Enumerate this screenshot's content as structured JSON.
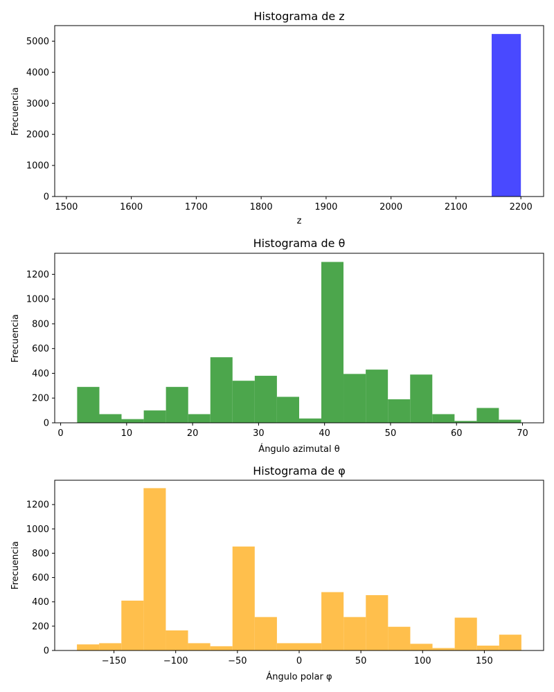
{
  "chart_data": [
    {
      "type": "bar",
      "title": "Histograma de z",
      "xlabel": "z",
      "ylabel": "Frecuencia",
      "xlim": [
        1482,
        2235
      ],
      "ylim": [
        0,
        5500
      ],
      "xticks": [
        1500,
        1600,
        1700,
        1800,
        1900,
        2000,
        2100,
        2200
      ],
      "yticks": [
        0,
        1000,
        2000,
        3000,
        4000,
        5000
      ],
      "color": "#4949ff",
      "bins": [
        {
          "x0": 2155,
          "x1": 2200,
          "value": 5230
        }
      ]
    },
    {
      "type": "bar",
      "title": "Histograma de θ",
      "xlabel": "Ángulo azimutal θ",
      "ylabel": "Frecuencia",
      "xlim": [
        -0.9,
        73.2
      ],
      "ylim": [
        0,
        1370
      ],
      "xticks": [
        0,
        10,
        20,
        30,
        40,
        50,
        60,
        70
      ],
      "yticks": [
        0,
        200,
        400,
        600,
        800,
        1000,
        1200
      ],
      "color": "#4ca64c",
      "bins": [
        {
          "x0": 2.5,
          "x1": 5.87,
          "value": 290
        },
        {
          "x0": 5.87,
          "x1": 9.23,
          "value": 70
        },
        {
          "x0": 9.23,
          "x1": 12.6,
          "value": 30
        },
        {
          "x0": 12.6,
          "x1": 15.96,
          "value": 100
        },
        {
          "x0": 15.96,
          "x1": 19.33,
          "value": 290
        },
        {
          "x0": 19.33,
          "x1": 22.69,
          "value": 70
        },
        {
          "x0": 22.69,
          "x1": 26.05,
          "value": 530
        },
        {
          "x0": 26.05,
          "x1": 29.42,
          "value": 340
        },
        {
          "x0": 29.42,
          "x1": 32.78,
          "value": 380
        },
        {
          "x0": 32.78,
          "x1": 36.15,
          "value": 210
        },
        {
          "x0": 36.15,
          "x1": 39.51,
          "value": 35
        },
        {
          "x0": 39.51,
          "x1": 42.87,
          "value": 1300
        },
        {
          "x0": 42.87,
          "x1": 46.24,
          "value": 395
        },
        {
          "x0": 46.24,
          "x1": 49.6,
          "value": 430
        },
        {
          "x0": 49.6,
          "x1": 52.97,
          "value": 190
        },
        {
          "x0": 52.97,
          "x1": 56.33,
          "value": 390
        },
        {
          "x0": 56.33,
          "x1": 59.7,
          "value": 70
        },
        {
          "x0": 59.7,
          "x1": 63.06,
          "value": 15
        },
        {
          "x0": 63.06,
          "x1": 66.42,
          "value": 120
        },
        {
          "x0": 66.42,
          "x1": 69.79,
          "value": 25
        }
      ]
    },
    {
      "type": "bar",
      "title": "Histograma de φ",
      "xlabel": "Ángulo polar φ",
      "ylabel": "Frecuencia",
      "xlim": [
        -198,
        198
      ],
      "ylim": [
        0,
        1400
      ],
      "xticks": [
        -150,
        -100,
        -50,
        0,
        50,
        100,
        150
      ],
      "xtick_labels": [
        "−150",
        "−100",
        "−50",
        "0",
        "50",
        "100",
        "150"
      ],
      "yticks": [
        0,
        200,
        400,
        600,
        800,
        1000,
        1200
      ],
      "color": "#ffbf4c",
      "bins": [
        {
          "x0": -180,
          "x1": -162,
          "value": 50
        },
        {
          "x0": -162,
          "x1": -144,
          "value": 60
        },
        {
          "x0": -144,
          "x1": -126,
          "value": 410
        },
        {
          "x0": -126,
          "x1": -108,
          "value": 1335
        },
        {
          "x0": -108,
          "x1": -90,
          "value": 165
        },
        {
          "x0": -90,
          "x1": -72,
          "value": 60
        },
        {
          "x0": -72,
          "x1": -54,
          "value": 35
        },
        {
          "x0": -54,
          "x1": -36,
          "value": 855
        },
        {
          "x0": -36,
          "x1": -18,
          "value": 275
        },
        {
          "x0": -18,
          "x1": 0,
          "value": 60
        },
        {
          "x0": 0,
          "x1": 18,
          "value": 60
        },
        {
          "x0": 18,
          "x1": 36,
          "value": 480
        },
        {
          "x0": 36,
          "x1": 54,
          "value": 275
        },
        {
          "x0": 54,
          "x1": 72,
          "value": 455
        },
        {
          "x0": 72,
          "x1": 90,
          "value": 195
        },
        {
          "x0": 90,
          "x1": 108,
          "value": 55
        },
        {
          "x0": 108,
          "x1": 126,
          "value": 20
        },
        {
          "x0": 126,
          "x1": 144,
          "value": 270
        },
        {
          "x0": 144,
          "x1": 162,
          "value": 40
        },
        {
          "x0": 162,
          "x1": 180,
          "value": 130
        }
      ]
    }
  ]
}
